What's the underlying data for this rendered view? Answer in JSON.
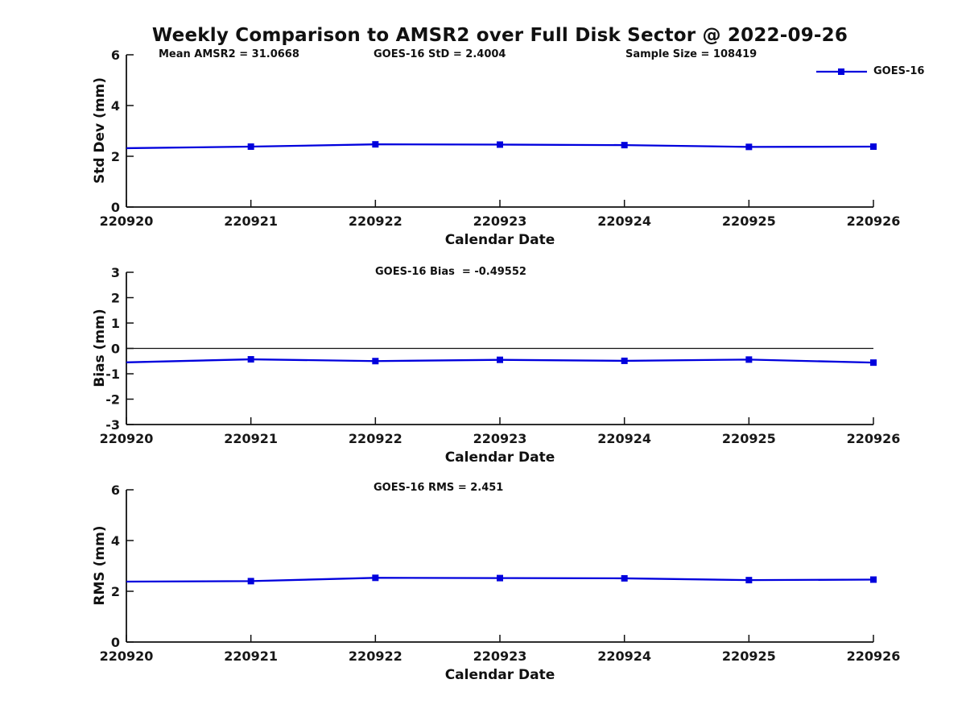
{
  "title": "Weekly Comparison to AMSR2 over Full Disk Sector @ 2022-09-26",
  "colors": {
    "line": "#0000dd",
    "axis": "#111111",
    "background": "#ffffff"
  },
  "legend": {
    "label": "GOES-16"
  },
  "chart_data": [
    {
      "type": "line",
      "ylabel": "Std Dev (mm)",
      "xlabel": "Calendar Date",
      "x": [
        "220920",
        "220921",
        "220922",
        "220923",
        "220924",
        "220925",
        "220926"
      ],
      "series": [
        {
          "name": "GOES-16",
          "values": [
            2.32,
            2.38,
            2.47,
            2.46,
            2.44,
            2.37,
            2.38
          ]
        }
      ],
      "ylim": [
        0,
        6
      ],
      "yticks": [
        0,
        2,
        4,
        6
      ],
      "grid": false,
      "zero_line": false,
      "marker": "square",
      "legend_position": "top-right",
      "annotations": [
        {
          "text": "Mean AMSR2 = 31.0668"
        },
        {
          "text": "GOES-16 StD = 2.4004"
        },
        {
          "text": "Sample Size = 108419"
        }
      ]
    },
    {
      "type": "line",
      "ylabel": "Bias (mm)",
      "xlabel": "Calendar Date",
      "x": [
        "220920",
        "220921",
        "220922",
        "220923",
        "220924",
        "220925",
        "220926"
      ],
      "series": [
        {
          "name": "GOES-16",
          "values": [
            -0.55,
            -0.43,
            -0.5,
            -0.45,
            -0.49,
            -0.44,
            -0.56
          ]
        }
      ],
      "ylim": [
        -3,
        3
      ],
      "yticks": [
        -3,
        -2,
        -1,
        0,
        1,
        2,
        3
      ],
      "grid": false,
      "zero_line": true,
      "marker": "square",
      "annotations": [
        {
          "text": "GOES-16 Bias  = -0.49552"
        }
      ]
    },
    {
      "type": "line",
      "ylabel": "RMS (mm)",
      "xlabel": "Calendar Date",
      "x": [
        "220920",
        "220921",
        "220922",
        "220923",
        "220924",
        "220925",
        "220926"
      ],
      "series": [
        {
          "name": "GOES-16",
          "values": [
            2.38,
            2.4,
            2.53,
            2.52,
            2.51,
            2.44,
            2.46
          ]
        }
      ],
      "ylim": [
        0,
        6
      ],
      "yticks": [
        0,
        2,
        4,
        6
      ],
      "grid": false,
      "zero_line": false,
      "marker": "square",
      "annotations": [
        {
          "text": "GOES-16 RMS = 2.451"
        }
      ]
    }
  ]
}
